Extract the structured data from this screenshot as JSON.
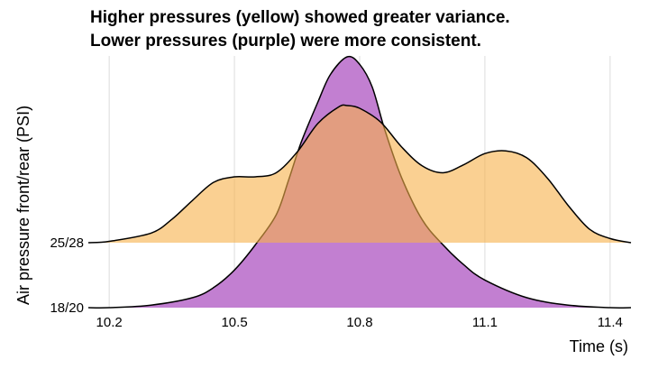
{
  "chart_data": {
    "type": "ridgeline",
    "title": "Higher pressures (yellow) showed greater variance.",
    "subtitle": "Lower pressures (purple) were more consistent.",
    "xlabel": "Time (s)",
    "ylabel": "Air pressure front/rear (PSI)",
    "xlim": [
      10.15,
      11.45
    ],
    "x_ticks": [
      10.2,
      10.5,
      10.8,
      11.1,
      11.4
    ],
    "x_tick_labels": [
      "10.2",
      "10.5",
      "10.8",
      "11.1",
      "11.4"
    ],
    "grid": true,
    "categories": [
      "18/20",
      "25/28"
    ],
    "series": [
      {
        "category": "18/20",
        "color": "#c27fd1",
        "opacity": 1,
        "x": [
          10.15,
          10.2,
          10.3,
          10.4,
          10.45,
          10.5,
          10.55,
          10.6,
          10.63,
          10.66,
          10.7,
          10.73,
          10.77,
          10.8,
          10.83,
          10.86,
          10.9,
          10.95,
          11.0,
          11.05,
          11.1,
          11.2,
          11.3,
          11.4,
          11.45
        ],
        "density": [
          0.0,
          0.0,
          0.01,
          0.04,
          0.08,
          0.15,
          0.25,
          0.37,
          0.51,
          0.66,
          0.82,
          0.93,
          1.0,
          0.97,
          0.88,
          0.71,
          0.52,
          0.35,
          0.25,
          0.17,
          0.11,
          0.04,
          0.01,
          0.0,
          0.0
        ]
      },
      {
        "category": "25/28",
        "color": "#f7b04a",
        "opacity": 0.6,
        "x": [
          10.15,
          10.2,
          10.3,
          10.35,
          10.4,
          10.45,
          10.5,
          10.55,
          10.6,
          10.65,
          10.7,
          10.75,
          10.77,
          10.8,
          10.85,
          10.9,
          10.95,
          11.0,
          11.05,
          11.1,
          11.15,
          11.2,
          11.25,
          11.3,
          11.35,
          11.4,
          11.45
        ],
        "density": [
          0.0,
          0.01,
          0.07,
          0.17,
          0.31,
          0.44,
          0.48,
          0.48,
          0.51,
          0.66,
          0.87,
          0.99,
          1.0,
          0.98,
          0.88,
          0.7,
          0.56,
          0.51,
          0.57,
          0.65,
          0.67,
          0.62,
          0.47,
          0.27,
          0.1,
          0.03,
          0.0
        ]
      }
    ]
  }
}
